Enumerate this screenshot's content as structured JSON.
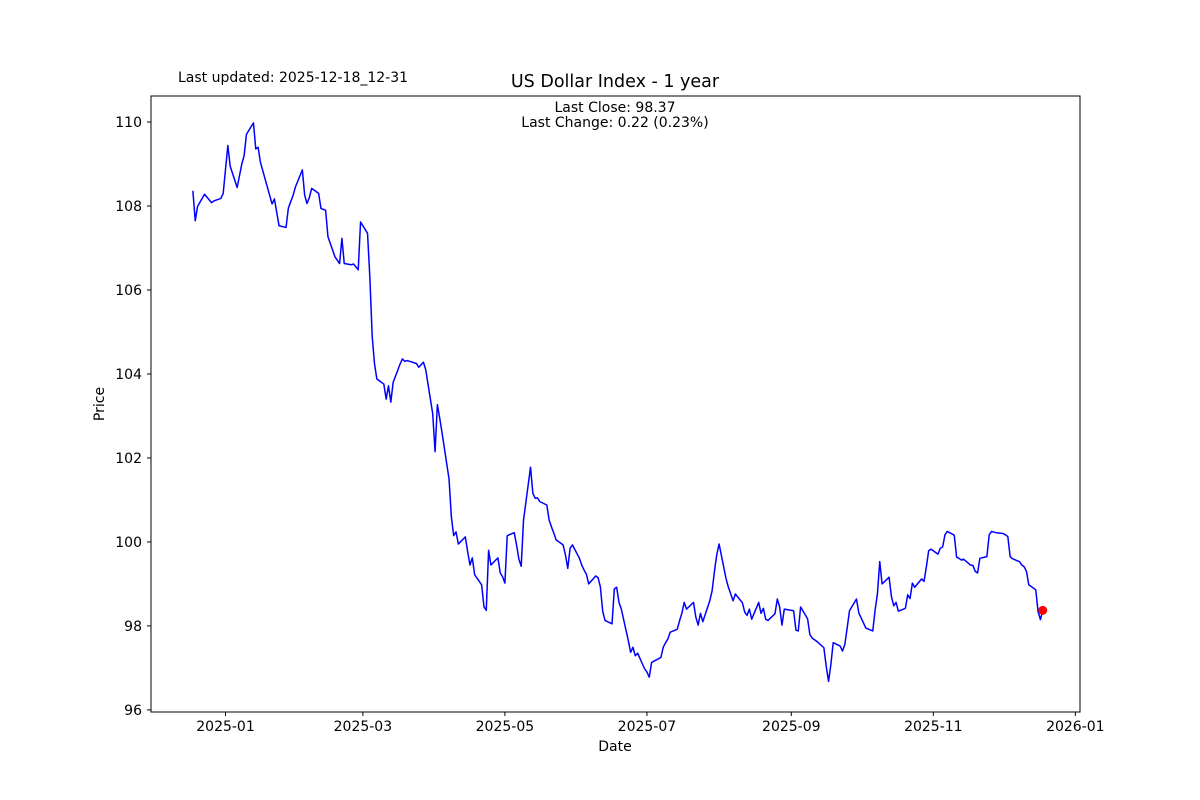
{
  "header": {
    "last_updated": "Last updated: 2025-12-18_12-31",
    "title": "US Dollar Index - 1 year",
    "annotation_line1": "Last Close: 98.37",
    "annotation_line2": "Last Change: 0.22 (0.23%)"
  },
  "chart_data": {
    "type": "line",
    "title": "US Dollar Index - 1 year",
    "xlabel": "Date",
    "ylabel": "Price",
    "x_tick_labels": [
      "2025-01",
      "2025-03",
      "2025-05",
      "2025-07",
      "2025-09",
      "2025-11",
      "2026-01"
    ],
    "x_tick_dates": [
      "2025-01-01",
      "2025-03-01",
      "2025-05-01",
      "2025-07-01",
      "2025-09-01",
      "2025-11-01",
      "2026-01-01"
    ],
    "y_ticks": [
      96,
      98,
      100,
      102,
      104,
      106,
      108,
      110
    ],
    "x_domain": [
      "2024-11-30",
      "2026-01-03"
    ],
    "ylim": [
      95.95,
      110.62
    ],
    "grid": false,
    "legend_position": "none",
    "line_color": "#0000ff",
    "marker_color": "#ff0000",
    "last_close": 98.37,
    "last_change": 0.22,
    "last_change_pct": "0.23%",
    "series": [
      {
        "name": "US Dollar Index",
        "points": [
          [
            "2024-12-18",
            108.35
          ],
          [
            "2024-12-19",
            107.65
          ],
          [
            "2024-12-20",
            107.99
          ],
          [
            "2024-12-23",
            108.28
          ],
          [
            "2024-12-26",
            108.08
          ],
          [
            "2024-12-27",
            108.12
          ],
          [
            "2024-12-30",
            108.18
          ],
          [
            "2024-12-31",
            108.3
          ],
          [
            "2025-01-02",
            109.44
          ],
          [
            "2025-01-03",
            108.95
          ],
          [
            "2025-01-06",
            108.44
          ],
          [
            "2025-01-08",
            109.0
          ],
          [
            "2025-01-09",
            109.2
          ],
          [
            "2025-01-10",
            109.71
          ],
          [
            "2025-01-13",
            109.98
          ],
          [
            "2025-01-14",
            109.36
          ],
          [
            "2025-01-15",
            109.4
          ],
          [
            "2025-01-16",
            109.04
          ],
          [
            "2025-01-21",
            108.05
          ],
          [
            "2025-01-22",
            108.17
          ],
          [
            "2025-01-24",
            107.53
          ],
          [
            "2025-01-27",
            107.49
          ],
          [
            "2025-01-28",
            107.95
          ],
          [
            "2025-01-29",
            108.1
          ],
          [
            "2025-01-30",
            108.25
          ],
          [
            "2025-01-31",
            108.45
          ],
          [
            "2025-02-03",
            108.86
          ],
          [
            "2025-02-04",
            108.26
          ],
          [
            "2025-02-05",
            108.06
          ],
          [
            "2025-02-06",
            108.2
          ],
          [
            "2025-02-07",
            108.42
          ],
          [
            "2025-02-10",
            108.3
          ],
          [
            "2025-02-11",
            107.94
          ],
          [
            "2025-02-12",
            107.92
          ],
          [
            "2025-02-13",
            107.9
          ],
          [
            "2025-02-14",
            107.27
          ],
          [
            "2025-02-17",
            106.79
          ],
          [
            "2025-02-18",
            106.71
          ],
          [
            "2025-02-19",
            106.63
          ],
          [
            "2025-02-20",
            107.23
          ],
          [
            "2025-02-21",
            106.63
          ],
          [
            "2025-02-24",
            106.6
          ],
          [
            "2025-02-25",
            106.62
          ],
          [
            "2025-02-26",
            106.55
          ],
          [
            "2025-02-27",
            106.48
          ],
          [
            "2025-02-28",
            107.62
          ],
          [
            "2025-03-03",
            107.35
          ],
          [
            "2025-03-04",
            106.3
          ],
          [
            "2025-03-05",
            104.9
          ],
          [
            "2025-03-06",
            104.24
          ],
          [
            "2025-03-07",
            103.88
          ],
          [
            "2025-03-10",
            103.76
          ],
          [
            "2025-03-11",
            103.4
          ],
          [
            "2025-03-12",
            103.72
          ],
          [
            "2025-03-13",
            103.33
          ],
          [
            "2025-03-14",
            103.8
          ],
          [
            "2025-03-17",
            104.24
          ],
          [
            "2025-03-18",
            104.36
          ],
          [
            "2025-03-19",
            104.3
          ],
          [
            "2025-03-20",
            104.32
          ],
          [
            "2025-03-24",
            104.25
          ],
          [
            "2025-03-25",
            104.16
          ],
          [
            "2025-03-26",
            104.22
          ],
          [
            "2025-03-27",
            104.28
          ],
          [
            "2025-03-28",
            104.1
          ],
          [
            "2025-03-31",
            103.05
          ],
          [
            "2025-04-01",
            102.15
          ],
          [
            "2025-04-02",
            103.27
          ],
          [
            "2025-04-03",
            102.95
          ],
          [
            "2025-04-04",
            102.6
          ],
          [
            "2025-04-07",
            101.5
          ],
          [
            "2025-04-08",
            100.6
          ],
          [
            "2025-04-09",
            100.15
          ],
          [
            "2025-04-10",
            100.24
          ],
          [
            "2025-04-11",
            99.95
          ],
          [
            "2025-04-14",
            100.12
          ],
          [
            "2025-04-15",
            99.77
          ],
          [
            "2025-04-16",
            99.45
          ],
          [
            "2025-04-17",
            99.62
          ],
          [
            "2025-04-18",
            99.22
          ],
          [
            "2025-04-21",
            98.98
          ],
          [
            "2025-04-22",
            98.46
          ],
          [
            "2025-04-23",
            98.37
          ],
          [
            "2025-04-24",
            99.8
          ],
          [
            "2025-04-25",
            99.45
          ],
          [
            "2025-04-28",
            99.62
          ],
          [
            "2025-04-29",
            99.26
          ],
          [
            "2025-04-30",
            99.17
          ],
          [
            "2025-05-01",
            99.02
          ],
          [
            "2025-05-02",
            100.15
          ],
          [
            "2025-05-05",
            100.22
          ],
          [
            "2025-05-06",
            99.93
          ],
          [
            "2025-05-07",
            99.59
          ],
          [
            "2025-05-08",
            99.42
          ],
          [
            "2025-05-09",
            100.52
          ],
          [
            "2025-05-12",
            101.78
          ],
          [
            "2025-05-13",
            101.16
          ],
          [
            "2025-05-14",
            101.04
          ],
          [
            "2025-05-15",
            101.05
          ],
          [
            "2025-05-16",
            100.96
          ],
          [
            "2025-05-19",
            100.88
          ],
          [
            "2025-05-20",
            100.52
          ],
          [
            "2025-05-21",
            100.36
          ],
          [
            "2025-05-22",
            100.21
          ],
          [
            "2025-05-23",
            100.05
          ],
          [
            "2025-05-26",
            99.93
          ],
          [
            "2025-05-27",
            99.69
          ],
          [
            "2025-05-28",
            99.37
          ],
          [
            "2025-05-29",
            99.85
          ],
          [
            "2025-05-30",
            99.93
          ],
          [
            "2025-06-02",
            99.61
          ],
          [
            "2025-06-03",
            99.45
          ],
          [
            "2025-06-04",
            99.33
          ],
          [
            "2025-06-05",
            99.23
          ],
          [
            "2025-06-06",
            99.0
          ],
          [
            "2025-06-09",
            99.19
          ],
          [
            "2025-06-10",
            99.15
          ],
          [
            "2025-06-11",
            98.93
          ],
          [
            "2025-06-12",
            98.35
          ],
          [
            "2025-06-13",
            98.13
          ],
          [
            "2025-06-16",
            98.05
          ],
          [
            "2025-06-17",
            98.88
          ],
          [
            "2025-06-18",
            98.92
          ],
          [
            "2025-06-19",
            98.56
          ],
          [
            "2025-06-20",
            98.4
          ],
          [
            "2025-06-23",
            97.65
          ],
          [
            "2025-06-24",
            97.37
          ],
          [
            "2025-06-25",
            97.49
          ],
          [
            "2025-06-26",
            97.29
          ],
          [
            "2025-06-27",
            97.35
          ],
          [
            "2025-06-30",
            96.98
          ],
          [
            "2025-07-01",
            96.9
          ],
          [
            "2025-07-02",
            96.78
          ],
          [
            "2025-07-03",
            97.13
          ],
          [
            "2025-07-07",
            97.25
          ],
          [
            "2025-07-08",
            97.49
          ],
          [
            "2025-07-09",
            97.6
          ],
          [
            "2025-07-10",
            97.69
          ],
          [
            "2025-07-11",
            97.85
          ],
          [
            "2025-07-14",
            97.92
          ],
          [
            "2025-07-15",
            98.12
          ],
          [
            "2025-07-16",
            98.3
          ],
          [
            "2025-07-17",
            98.56
          ],
          [
            "2025-07-18",
            98.4
          ],
          [
            "2025-07-21",
            98.56
          ],
          [
            "2025-07-22",
            98.21
          ],
          [
            "2025-07-23",
            98.02
          ],
          [
            "2025-07-24",
            98.3
          ],
          [
            "2025-07-25",
            98.1
          ],
          [
            "2025-07-28",
            98.6
          ],
          [
            "2025-07-29",
            98.84
          ],
          [
            "2025-07-30",
            99.3
          ],
          [
            "2025-07-31",
            99.7
          ],
          [
            "2025-08-01",
            99.95
          ],
          [
            "2025-08-04",
            99.12
          ],
          [
            "2025-08-05",
            98.92
          ],
          [
            "2025-08-06",
            98.76
          ],
          [
            "2025-08-07",
            98.6
          ],
          [
            "2025-08-08",
            98.76
          ],
          [
            "2025-08-11",
            98.55
          ],
          [
            "2025-08-12",
            98.33
          ],
          [
            "2025-08-13",
            98.25
          ],
          [
            "2025-08-14",
            98.4
          ],
          [
            "2025-08-15",
            98.16
          ],
          [
            "2025-08-18",
            98.56
          ],
          [
            "2025-08-19",
            98.3
          ],
          [
            "2025-08-20",
            98.42
          ],
          [
            "2025-08-21",
            98.16
          ],
          [
            "2025-08-22",
            98.13
          ],
          [
            "2025-08-25",
            98.29
          ],
          [
            "2025-08-26",
            98.64
          ],
          [
            "2025-08-27",
            98.45
          ],
          [
            "2025-08-28",
            98.02
          ],
          [
            "2025-08-29",
            98.4
          ],
          [
            "2025-09-02",
            98.36
          ],
          [
            "2025-09-03",
            97.9
          ],
          [
            "2025-09-04",
            97.88
          ],
          [
            "2025-09-05",
            98.45
          ],
          [
            "2025-09-08",
            98.17
          ],
          [
            "2025-09-09",
            97.79
          ],
          [
            "2025-09-10",
            97.71
          ],
          [
            "2025-09-11",
            97.67
          ],
          [
            "2025-09-12",
            97.63
          ],
          [
            "2025-09-15",
            97.48
          ],
          [
            "2025-09-16",
            97.04
          ],
          [
            "2025-09-17",
            96.68
          ],
          [
            "2025-09-18",
            97.08
          ],
          [
            "2025-09-19",
            97.6
          ],
          [
            "2025-09-22",
            97.52
          ],
          [
            "2025-09-23",
            97.4
          ],
          [
            "2025-09-24",
            97.56
          ],
          [
            "2025-09-25",
            97.95
          ],
          [
            "2025-09-26",
            98.36
          ],
          [
            "2025-09-29",
            98.64
          ],
          [
            "2025-09-30",
            98.31
          ],
          [
            "2025-10-01",
            98.19
          ],
          [
            "2025-10-02",
            98.07
          ],
          [
            "2025-10-03",
            97.95
          ],
          [
            "2025-10-06",
            97.88
          ],
          [
            "2025-10-07",
            98.38
          ],
          [
            "2025-10-08",
            98.77
          ],
          [
            "2025-10-09",
            99.53
          ],
          [
            "2025-10-10",
            99.0
          ],
          [
            "2025-10-13",
            99.16
          ],
          [
            "2025-10-14",
            98.7
          ],
          [
            "2025-10-15",
            98.48
          ],
          [
            "2025-10-16",
            98.56
          ],
          [
            "2025-10-17",
            98.35
          ],
          [
            "2025-10-20",
            98.42
          ],
          [
            "2025-10-21",
            98.74
          ],
          [
            "2025-10-22",
            98.65
          ],
          [
            "2025-10-23",
            99.02
          ],
          [
            "2025-10-24",
            98.92
          ],
          [
            "2025-10-27",
            99.12
          ],
          [
            "2025-10-28",
            99.06
          ],
          [
            "2025-10-29",
            99.4
          ],
          [
            "2025-10-30",
            99.79
          ],
          [
            "2025-10-31",
            99.83
          ],
          [
            "2025-11-03",
            99.71
          ],
          [
            "2025-11-04",
            99.85
          ],
          [
            "2025-11-05",
            99.88
          ],
          [
            "2025-11-06",
            100.17
          ],
          [
            "2025-11-07",
            100.25
          ],
          [
            "2025-11-10",
            100.16
          ],
          [
            "2025-11-11",
            99.64
          ],
          [
            "2025-11-12",
            99.61
          ],
          [
            "2025-11-13",
            99.57
          ],
          [
            "2025-11-14",
            99.59
          ],
          [
            "2025-11-17",
            99.45
          ],
          [
            "2025-11-18",
            99.44
          ],
          [
            "2025-11-19",
            99.3
          ],
          [
            "2025-11-20",
            99.26
          ],
          [
            "2025-11-21",
            99.61
          ],
          [
            "2025-11-24",
            99.65
          ],
          [
            "2025-11-25",
            100.17
          ],
          [
            "2025-11-26",
            100.25
          ],
          [
            "2025-11-28",
            100.22
          ],
          [
            "2025-12-01",
            100.2
          ],
          [
            "2025-12-02",
            100.17
          ],
          [
            "2025-12-03",
            100.13
          ],
          [
            "2025-12-04",
            99.65
          ],
          [
            "2025-12-05",
            99.6
          ],
          [
            "2025-12-08",
            99.53
          ],
          [
            "2025-12-09",
            99.45
          ],
          [
            "2025-12-10",
            99.41
          ],
          [
            "2025-12-11",
            99.3
          ],
          [
            "2025-12-12",
            98.98
          ],
          [
            "2025-12-15",
            98.86
          ],
          [
            "2025-12-16",
            98.34
          ],
          [
            "2025-12-17",
            98.15
          ],
          [
            "2025-12-18",
            98.37
          ]
        ]
      }
    ]
  }
}
